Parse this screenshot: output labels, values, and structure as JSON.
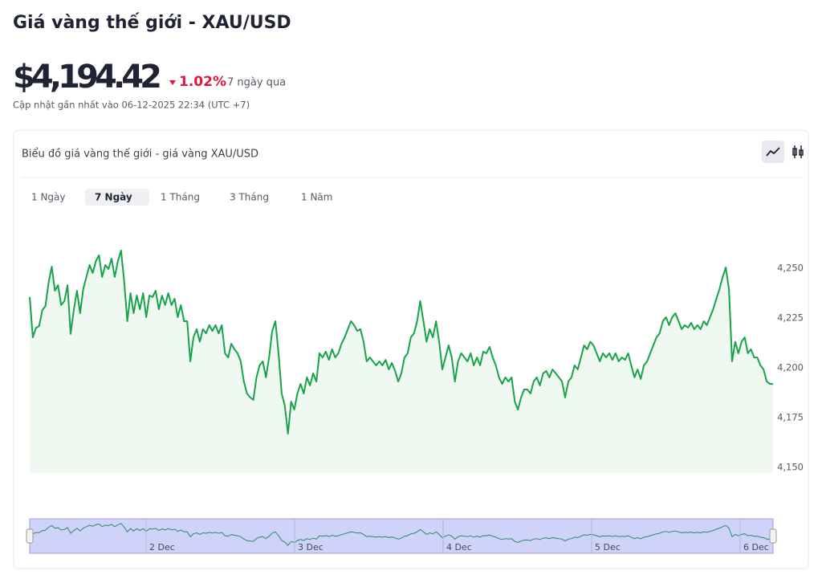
{
  "header": {
    "title": "Giá vàng thế giới - XAU/USD",
    "price": "$4,194.42",
    "change": "1.02%",
    "period": "7 ngày qua",
    "updated": "Cập nhật gần nhất vào 06-12-2025 22:34 (UTC +7)"
  },
  "panel": {
    "title": "Biểu đồ giá vàng thế giới - giá vàng XAU/USD",
    "tabs": [
      "1 Ngày",
      "7 Ngày",
      "1 Tháng",
      "3 Tháng",
      "1 Năm"
    ],
    "active_tab": 1
  },
  "chart_data": {
    "type": "line",
    "color": "#17a34a",
    "values": [
      4235.5,
      4215.3,
      4220,
      4221,
      4229,
      4231,
      4242.7,
      4250.8,
      4238.7,
      4241.5,
      4231.5,
      4233.5,
      4241.5,
      4217,
      4229,
      4238.7,
      4227.4,
      4239.5,
      4245.6,
      4251.6,
      4247.6,
      4253.6,
      4256.5,
      4245.6,
      4251.6,
      4249.6,
      4254.8,
      4245.6,
      4253.6,
      4258.9,
      4243.5,
      4223.4,
      4237.5,
      4227.4,
      4236.3,
      4229.4,
      4237.5,
      4225.4,
      4236.3,
      4235.5,
      4238.7,
      4229.4,
      4236.3,
      4231.5,
      4237.5,
      4231.5,
      4234.7,
      4225.4,
      4231.5,
      4223.4,
      4223.4,
      4203.2,
      4215.3,
      4219.4,
      4213.1,
      4219.4,
      4217.3,
      4221.4,
      4218.5,
      4221.4,
      4217.3,
      4221.4,
      4207.3,
      4205.2,
      4212.1,
      4209.3,
      4207.3,
      4203.2,
      4193.1,
      4187.1,
      4185.1,
      4183.9,
      4195.2,
      4201.2,
      4203.2,
      4195.2,
      4205.2,
      4218.5,
      4223.4,
      4207.3,
      4187.1,
      4181,
      4166.9,
      4183,
      4179,
      4187.1,
      4191.9,
      4187.1,
      4195.2,
      4191.1,
      4197.2,
      4193.1,
      4207.3,
      4205.2,
      4208.1,
      4204,
      4209.3,
      4205.2,
      4207.3,
      4212.1,
      4215.3,
      4219.4,
      4223.4,
      4221.4,
      4218.5,
      4219.4,
      4213.1,
      4203.2,
      4205.2,
      4203.2,
      4201.2,
      4203.2,
      4201.2,
      4204,
      4199.2,
      4202.4,
      4198.4,
      4193.1,
      4197.2,
      4205.2,
      4207.3,
      4215.3,
      4217.3,
      4223.4,
      4233.5,
      4223.4,
      4213.1,
      4219.4,
      4215.3,
      4223.4,
      4213.1,
      4199.2,
      4205.2,
      4211.3,
      4205.2,
      4193.1,
      4203.2,
      4207.3,
      4205.2,
      4203.2,
      4207.3,
      4201.2,
      4205.2,
      4201.2,
      4208.1,
      4207.3,
      4210.5,
      4205.2,
      4201.2,
      4195.2,
      4191.9,
      4195.2,
      4193.1,
      4195.2,
      4183.1,
      4179,
      4185.1,
      4189.1,
      4189.1,
      4187.1,
      4193.1,
      4195.2,
      4191.1,
      4197.2,
      4198.4,
      4195.2,
      4199.2,
      4197.2,
      4195.2,
      4193.1,
      4185.1,
      4193.1,
      4195.2,
      4201.2,
      4199.2,
      4205.2,
      4211.3,
      4209.3,
      4213.1,
      4211.3,
      4207.3,
      4203.2,
      4207.3,
      4205.2,
      4207.3,
      4204,
      4207.3,
      4203.2,
      4205.2,
      4204,
      4207.3,
      4201.2,
      4195.2,
      4199.2,
      4194.4,
      4201.2,
      4203.2,
      4207.3,
      4211.3,
      4215.3,
      4217.3,
      4223.4,
      4225.4,
      4221.4,
      4225.4,
      4227.4,
      4223.4,
      4219.4,
      4221.4,
      4220.2,
      4222.6,
      4219.4,
      4221.4,
      4219.4,
      4223.4,
      4221.4,
      4225.4,
      4229.4,
      4234.7,
      4239.5,
      4245.6,
      4250.4,
      4239.5,
      4203.2,
      4213.1,
      4207.3,
      4213.1,
      4215.3,
      4207.3,
      4209.3,
      4205.2,
      4205.2,
      4201.2,
      4199.2,
      4193.1,
      4191.9,
      4191.9
    ],
    "ylim": [
      4147,
      4265
    ],
    "yticks": [
      {
        "value": 4150,
        "label": "4,150"
      },
      {
        "value": 4175,
        "label": "4,175"
      },
      {
        "value": 4200,
        "label": "4,200"
      },
      {
        "value": 4225,
        "label": "4,225"
      },
      {
        "value": 4250,
        "label": "4,250"
      }
    ],
    "navigator_labels": [
      "2 Dec",
      "3 Dec",
      "4 Dec",
      "5 Dec",
      "6 Dec"
    ]
  }
}
